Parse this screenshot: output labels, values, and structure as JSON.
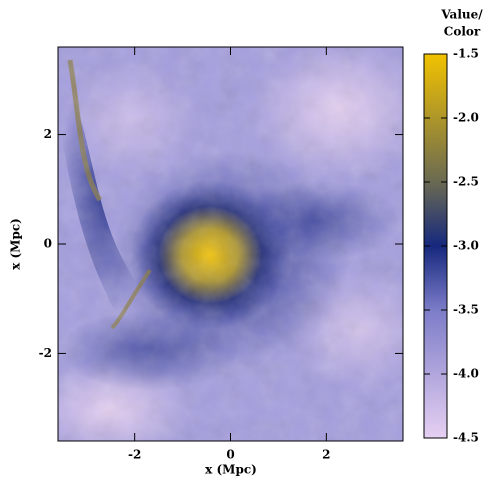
{
  "chart_data": {
    "type": "heatmap",
    "xlabel": "x (Mpc)",
    "ylabel": "x (Mpc)",
    "xlim": [
      -3.6,
      3.6
    ],
    "ylim": [
      -3.6,
      3.6
    ],
    "xticks": [
      -2,
      0,
      2
    ],
    "yticks": [
      -2,
      0,
      2
    ],
    "colorbar": {
      "title": [
        "Value/",
        "Color"
      ],
      "lim": [
        -4.5,
        -1.5
      ],
      "ticks": [
        -4.5,
        {
          "value": -4,
          "label": "-4.0"
        },
        -3.5,
        {
          "value": -3,
          "label": "-3.0"
        },
        -2.5,
        {
          "value": -2,
          "label": "-2.0"
        },
        -1.5
      ],
      "colorscale": [
        {
          "value": -4.5,
          "color": "#e6d0f2"
        },
        {
          "value": -3.5,
          "color": "#7c7cc8"
        },
        {
          "value": -3,
          "color": "#16287e"
        },
        {
          "value": -2.5,
          "color": "#6a6a52"
        },
        {
          "value": -1.5,
          "color": "#f2c200"
        }
      ]
    }
  }
}
